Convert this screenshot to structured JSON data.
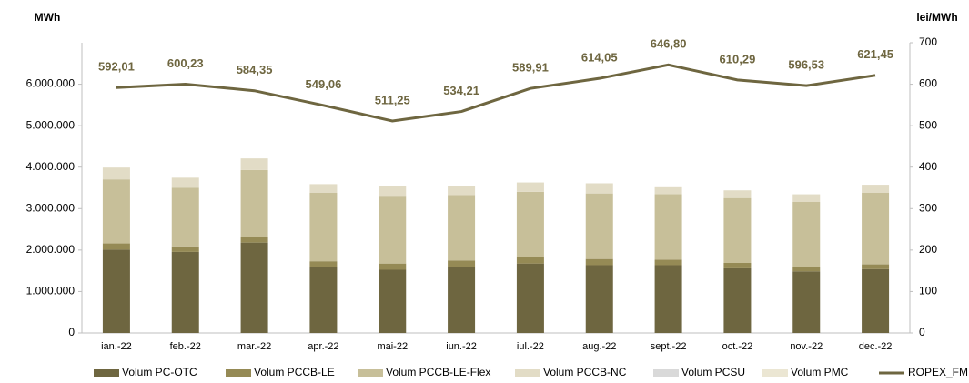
{
  "chart_data": {
    "type": "bar",
    "stacked": true,
    "y_label": "MWh",
    "y2_label": "lei/MWh",
    "categories": [
      "ian.-22",
      "feb.-22",
      "mar.-22",
      "apr.-22",
      "mai-22",
      "iun.-22",
      "iul.-22",
      "aug.-22",
      "sept.-22",
      "oct.-22",
      "nov.-22",
      "dec.-22"
    ],
    "ylim": [
      0,
      7000000
    ],
    "yticks": [
      0,
      {
        "value": 1000000,
        "label": "1.000.000"
      },
      {
        "value": 2000000,
        "label": "2.000.000"
      },
      {
        "value": 3000000,
        "label": "3.000.000"
      },
      {
        "value": 4000000,
        "label": "4.000.000"
      },
      {
        "value": 5000000,
        "label": "5.000.000"
      },
      {
        "value": 6000000,
        "label": "6.000.000"
      }
    ],
    "y2lim": [
      0,
      700
    ],
    "y2ticks": [
      0,
      100,
      200,
      300,
      400,
      500,
      600,
      700
    ],
    "legend": "bottom",
    "series": [
      {
        "name": "Volum PC-OTC",
        "color": "#6e6640",
        "values": [
          2010000,
          1955000,
          2180000,
          1600000,
          1525000,
          1600000,
          1675000,
          1635000,
          1635000,
          1560000,
          1485000,
          1540000
        ]
      },
      {
        "name": "Volum PCCB-LE",
        "color": "#958a55",
        "values": [
          150000,
          135000,
          130000,
          130000,
          150000,
          150000,
          150000,
          150000,
          135000,
          130000,
          115000,
          115000
        ]
      },
      {
        "name": "Volum PCCB-LE-Flex",
        "color": "#c7bf99",
        "values": [
          1545000,
          1410000,
          1620000,
          1655000,
          1635000,
          1580000,
          1580000,
          1580000,
          1580000,
          1565000,
          1560000,
          1730000
        ]
      },
      {
        "name": "Volum PCCB-NC",
        "color": "#e2dcc6",
        "values": [
          285000,
          245000,
          280000,
          205000,
          245000,
          205000,
          225000,
          245000,
          165000,
          185000,
          185000,
          190000
        ]
      },
      {
        "name": "Volum PCSU",
        "color": "#d9d9d9",
        "values": [
          0,
          0,
          0,
          0,
          0,
          0,
          0,
          0,
          0,
          0,
          0,
          0
        ]
      },
      {
        "name": "Volum PMC",
        "color": "#ebe6d3",
        "values": [
          0,
          0,
          0,
          0,
          0,
          0,
          0,
          0,
          0,
          0,
          0,
          0
        ]
      },
      {
        "name": "ROPEX_FM",
        "type": "line",
        "axis": "y2",
        "color": "#6e6640",
        "values": [
          592.01,
          600.23,
          584.35,
          549.06,
          511.25,
          534.21,
          589.91,
          614.05,
          646.8,
          610.29,
          596.53,
          621.45
        ],
        "value_labels": [
          "592,01",
          "600,23",
          "584,35",
          "549,06",
          "511,25",
          "534,21",
          "589,91",
          "614,05",
          "646,80",
          "610,29",
          "596,53",
          "621,45"
        ]
      }
    ]
  }
}
